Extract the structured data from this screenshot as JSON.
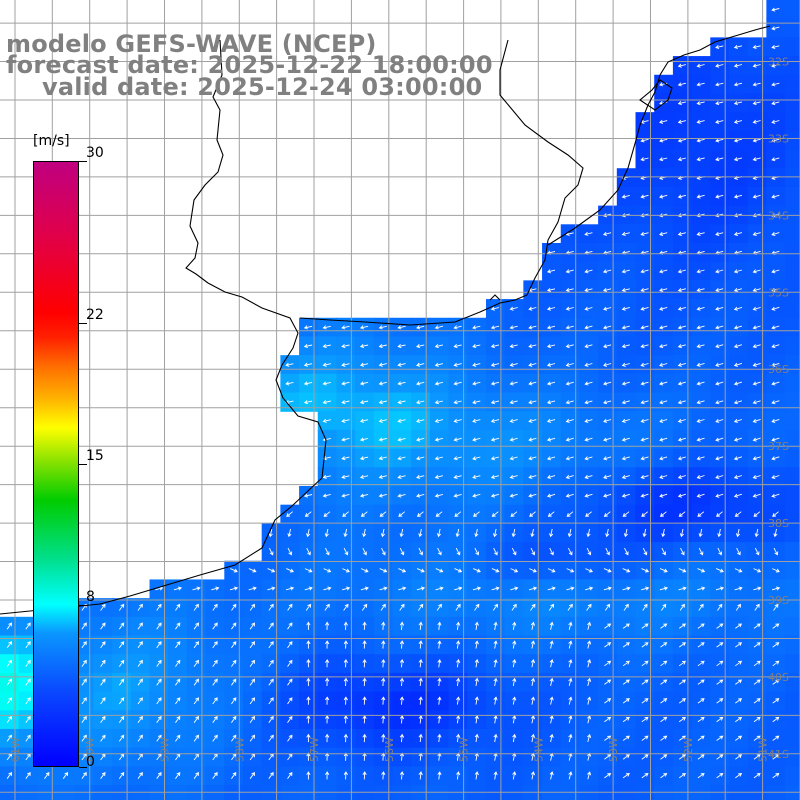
{
  "title": {
    "model": "modelo GEFS-WAVE (NCEP)",
    "forecast": "forecast date: 2025-12-22 18:00:00",
    "valid": "valid date: 2025-12-24 03:00:00"
  },
  "colorbar": {
    "unit": "[m/s]",
    "ticks": [
      {
        "label": "30",
        "value": 30
      },
      {
        "label": "22",
        "value": 22
      },
      {
        "label": "15",
        "value": 15
      },
      {
        "label": "8",
        "value": 8
      },
      {
        "label": "0",
        "value": 0
      }
    ],
    "range": [
      0,
      30
    ],
    "colors": [
      "#0000ff",
      "#0a96ff",
      "#00ffff",
      "#00cc00",
      "#ffff00",
      "#ff7000",
      "#ff0000",
      "#c00080"
    ]
  },
  "map": {
    "lat_labels": [
      "32S",
      "33S",
      "34S",
      "35S",
      "36S",
      "37S",
      "38S",
      "39S",
      "40S",
      "41S"
    ],
    "lon_labels": [
      "61W",
      "60W",
      "59W",
      "58W",
      "57W",
      "56W",
      "55W",
      "54W",
      "53W",
      "52W",
      "51W"
    ],
    "lon_range": [
      -61.2,
      -50.5
    ],
    "lat_range": [
      -31.2,
      -41.6
    ],
    "gridlines": true,
    "coastline_color": "#000000",
    "grid_color": "#a0a0a0",
    "field": "wind speed with direction arrows",
    "cell_deg": 0.25
  }
}
